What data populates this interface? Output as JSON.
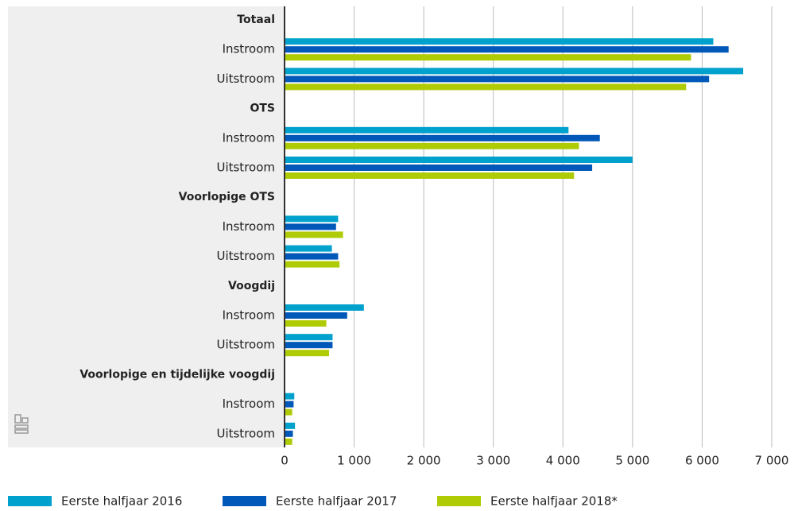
{
  "chart_data": {
    "type": "bar",
    "orientation": "horizontal",
    "categories": [
      "Totaal",
      "Instroom",
      "Uitstroom",
      "OTS",
      "Instroom",
      "Uitstroom",
      "Voorlopige OTS",
      "Instroom",
      "Uitstroom",
      "Voogdij",
      "Instroom",
      "Uitstroom",
      "Voorlopige en tijdelijke voogdij",
      "Instroom",
      "Uitstroom"
    ],
    "series": [
      {
        "name": "Eerste halfjaar 2016",
        "color": "#00a1cd",
        "values": [
          null,
          6160,
          6590,
          null,
          4080,
          5000,
          null,
          770,
          680,
          null,
          1140,
          690,
          null,
          140,
          150
        ]
      },
      {
        "name": "Eerste halfjaar 2017",
        "color": "#0058b8",
        "values": [
          null,
          6380,
          6100,
          null,
          4530,
          4420,
          null,
          740,
          770,
          null,
          900,
          690,
          null,
          130,
          120
        ]
      },
      {
        "name": "Eerste halfjaar 2018*",
        "color": "#afcb05",
        "values": [
          null,
          5840,
          5770,
          null,
          4230,
          4160,
          null,
          840,
          790,
          null,
          600,
          640,
          null,
          110,
          110
        ]
      }
    ],
    "xlim": [
      0,
      7000
    ],
    "xticks": [
      0,
      {
        "value": 1000,
        "label": "1 000"
      },
      {
        "value": 2000,
        "label": "2 000"
      },
      {
        "value": 3000,
        "label": "3 000"
      },
      {
        "value": 4000,
        "label": "4 000"
      },
      {
        "value": 5000,
        "label": "5 000"
      },
      {
        "value": 6000,
        "label": "6 000"
      },
      {
        "value": 7000,
        "label": "7 000"
      }
    ],
    "grid": true,
    "legend": "bottom"
  }
}
